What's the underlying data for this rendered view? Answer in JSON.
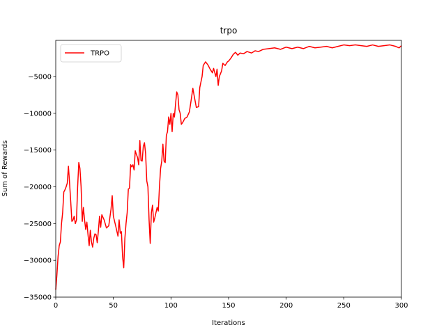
{
  "chart_data": {
    "type": "line",
    "title": "trpo",
    "x_label": "Iterations",
    "y_label": "Sum of Rewards",
    "legend": "upper left",
    "xlim": [
      0,
      300
    ],
    "xticks": [
      0,
      50,
      100,
      150,
      200,
      250,
      300
    ],
    "ylim": [
      -35000,
      -80
    ],
    "yticks": [
      {
        "value": -35000,
        "label": "−35000"
      },
      {
        "value": -30000,
        "label": "−30000"
      },
      {
        "value": -25000,
        "label": "−25000"
      },
      {
        "value": -20000,
        "label": "−20000"
      },
      {
        "value": -15000,
        "label": "−15000"
      },
      {
        "value": -10000,
        "label": "−10000"
      },
      {
        "value": -5000,
        "label": "−5000"
      }
    ],
    "x": [
      0,
      1,
      2,
      3,
      4,
      5,
      6,
      7,
      8,
      9,
      10,
      11,
      12,
      13,
      14,
      15,
      16,
      17,
      18,
      19,
      20,
      21,
      22,
      23,
      24,
      25,
      26,
      27,
      28,
      29,
      30,
      31,
      32,
      33,
      34,
      35,
      36,
      37,
      38,
      39,
      40,
      42,
      44,
      46,
      48,
      49,
      50,
      52,
      54,
      55,
      56,
      57,
      58,
      59,
      60,
      61,
      62,
      63,
      64,
      65,
      66,
      67,
      68,
      69,
      70,
      71,
      72,
      73,
      74,
      75,
      76,
      77,
      78,
      79,
      80,
      81,
      82,
      83,
      84,
      85,
      86,
      87,
      88,
      89,
      90,
      91,
      92,
      93,
      94,
      95,
      96,
      97,
      98,
      99,
      100,
      101,
      102,
      103,
      104,
      105,
      106,
      107,
      108,
      109,
      110,
      112,
      114,
      116,
      118,
      119,
      120,
      122,
      124,
      125,
      127,
      128,
      130,
      132,
      134,
      136,
      137,
      139,
      140,
      141,
      142,
      144,
      145,
      147,
      149,
      150,
      152,
      154,
      156,
      158,
      160,
      163,
      166,
      170,
      173,
      176,
      180,
      185,
      190,
      195,
      200,
      205,
      210,
      215,
      220,
      225,
      230,
      235,
      240,
      245,
      250,
      255,
      260,
      265,
      270,
      275,
      280,
      285,
      290,
      295,
      298,
      300
    ],
    "series": [
      {
        "name": "TRPO",
        "color": "#ff0000",
        "values": [
          -34000,
          -32000,
          -29500,
          -28000,
          -27500,
          -25000,
          -23500,
          -20700,
          -20400,
          -20000,
          -19500,
          -17200,
          -19500,
          -22000,
          -24700,
          -24500,
          -24000,
          -25000,
          -24500,
          -20000,
          -16700,
          -17500,
          -20000,
          -24700,
          -22800,
          -24500,
          -25800,
          -24800,
          -26500,
          -28000,
          -25900,
          -27500,
          -28200,
          -27000,
          -26400,
          -26500,
          -27600,
          -26000,
          -24000,
          -25500,
          -23800,
          -24500,
          -25600,
          -25300,
          -23000,
          -21200,
          -24000,
          -25300,
          -26700,
          -24500,
          -26300,
          -26100,
          -29500,
          -31000,
          -27000,
          -25000,
          -23500,
          -20300,
          -20200,
          -17000,
          -17300,
          -17000,
          -17700,
          -15100,
          -15600,
          -16000,
          -17000,
          -13700,
          -16400,
          -16500,
          -14500,
          -14000,
          -15500,
          -19200,
          -20000,
          -24500,
          -27700,
          -23500,
          -22500,
          -24800,
          -24200,
          -23500,
          -22800,
          -23300,
          -20000,
          -17500,
          -16500,
          -14200,
          -16500,
          -16700,
          -13000,
          -12500,
          -10500,
          -11500,
          -10000,
          -12500,
          -10000,
          -10500,
          -8700,
          -7100,
          -7500,
          -9500,
          -10000,
          -11500,
          -11300,
          -10700,
          -10500,
          -9800,
          -7700,
          -6600,
          -7500,
          -9200,
          -9100,
          -6500,
          -5000,
          -3500,
          -3000,
          -3400,
          -4000,
          -4500,
          -3900,
          -5000,
          -4000,
          -6200,
          -5000,
          -4200,
          -3200,
          -3500,
          -3000,
          -2900,
          -2500,
          -2000,
          -1700,
          -2100,
          -1800,
          -1900,
          -1600,
          -1800,
          -1500,
          -1600,
          -1300,
          -1200,
          -1100,
          -1300,
          -1000,
          -1200,
          -1000,
          -1200,
          -900,
          -1100,
          -1000,
          -900,
          -1100,
          -900,
          -700,
          -800,
          -700,
          -800,
          -900,
          -700,
          -900,
          -800,
          -700,
          -900,
          -1100,
          -800
        ]
      }
    ]
  }
}
